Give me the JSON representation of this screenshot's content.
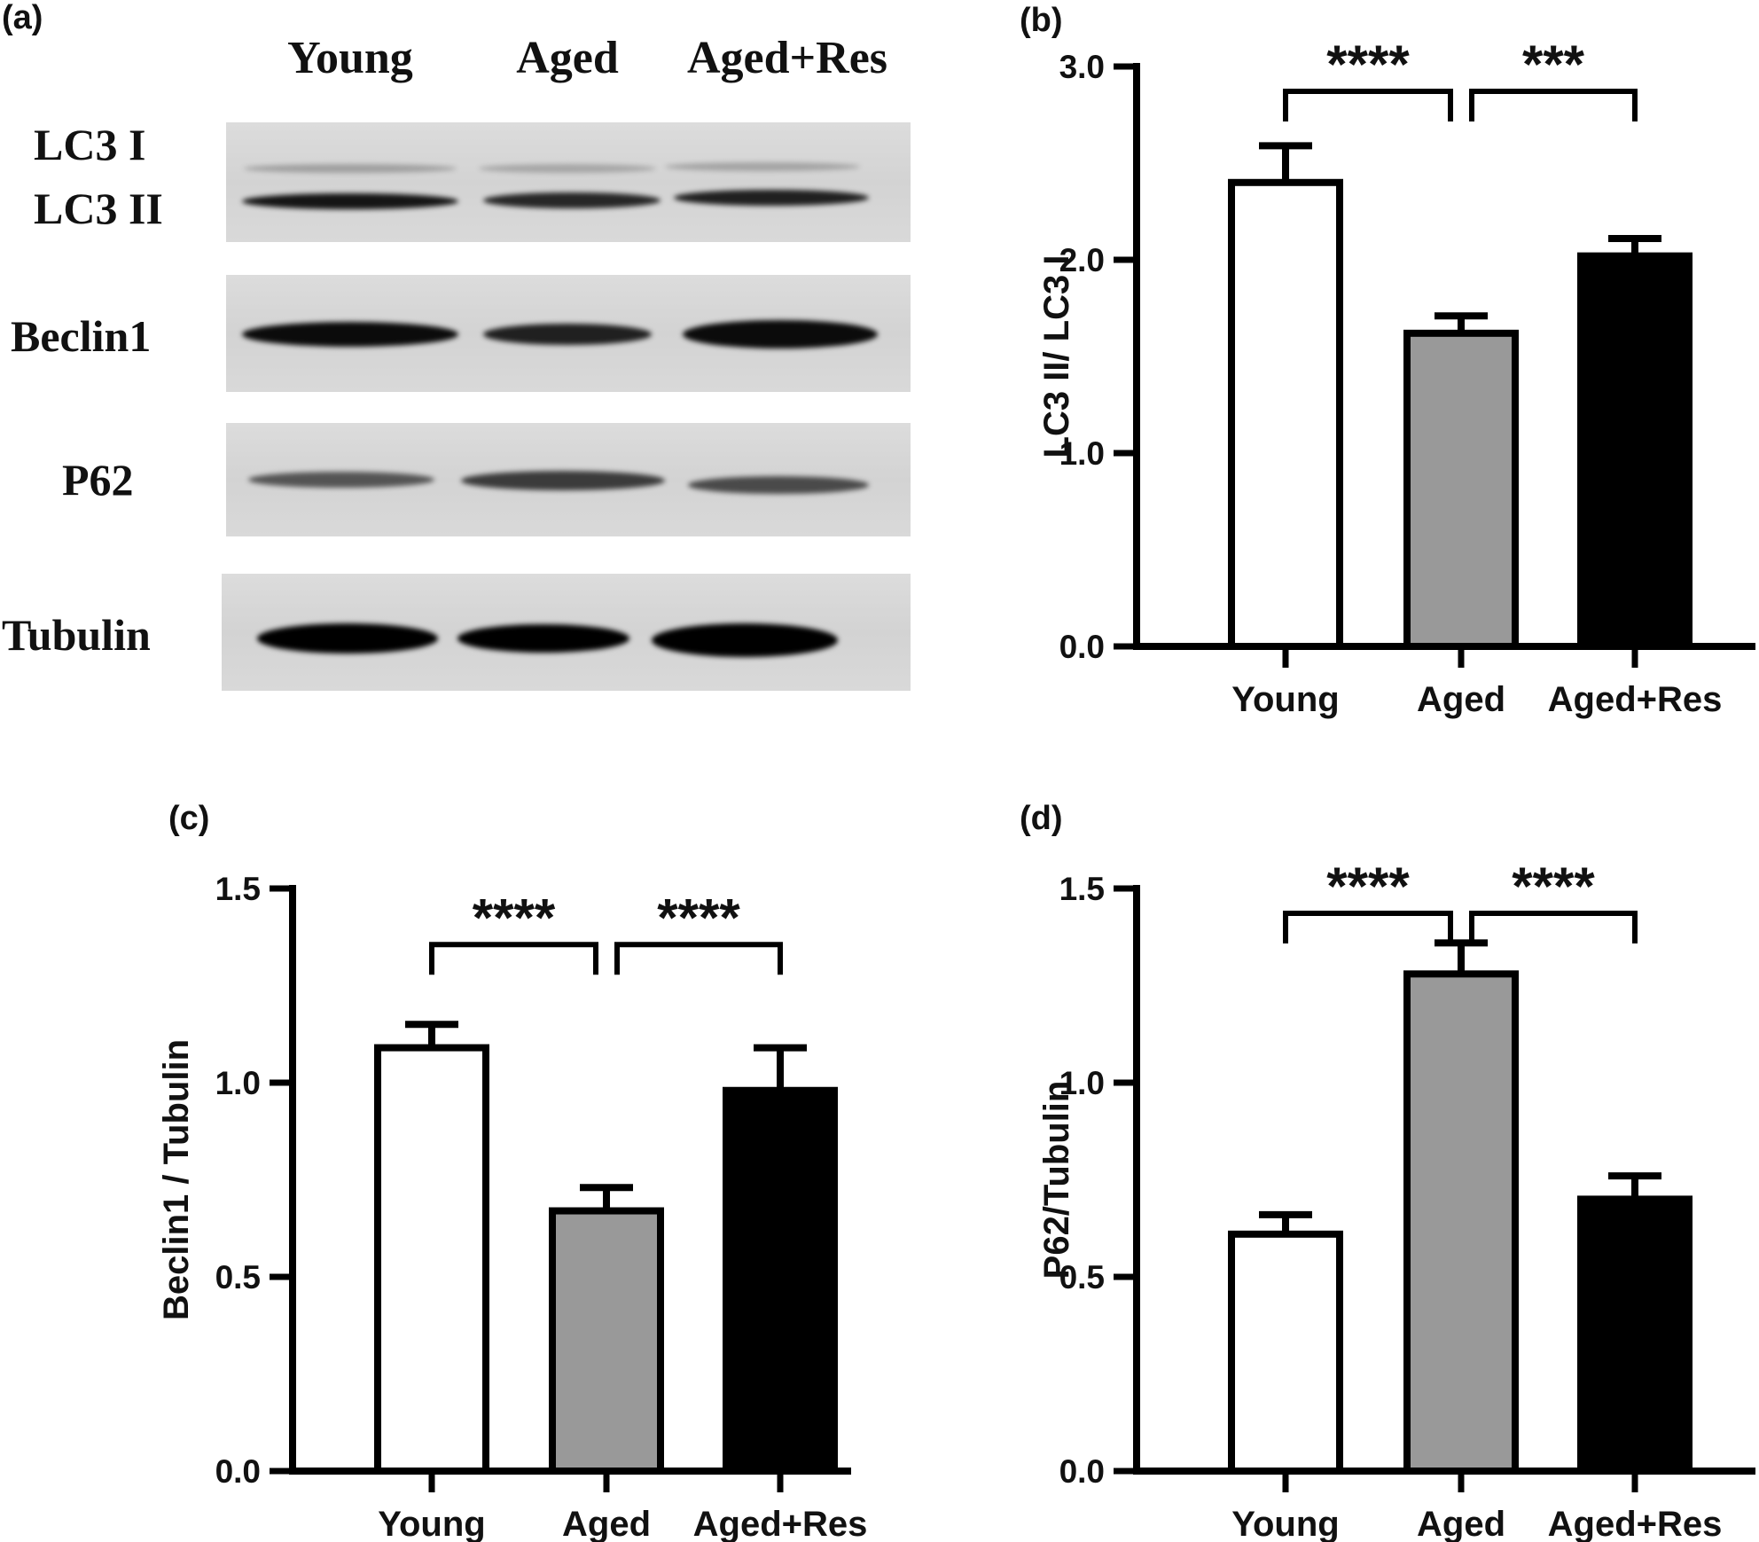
{
  "blot": {
    "panel_label": "(a)",
    "lane_headers": [
      "Young",
      "Aged",
      "Aged+Res"
    ],
    "rows": [
      {
        "labels": [
          "LC3 I",
          "LC3 II"
        ],
        "bands": [
          [
            0.25,
            0.22,
            0.23
          ],
          [
            0.9,
            0.82,
            0.85
          ]
        ]
      },
      {
        "labels": [
          "Beclin1"
        ],
        "bands": [
          [
            0.95,
            0.85,
            0.95
          ]
        ]
      },
      {
        "labels": [
          "P62"
        ],
        "bands": [
          [
            0.6,
            0.72,
            0.65
          ]
        ]
      },
      {
        "labels": [
          "Tubulin"
        ],
        "bands": [
          [
            1.0,
            1.0,
            1.0
          ]
        ]
      }
    ]
  },
  "colors": {
    "young": "#ffffff",
    "aged": "#999999",
    "aged_res": "#000000",
    "axis": "#000000"
  },
  "chart_data": [
    {
      "panel_label": "(b)",
      "type": "bar",
      "categories": [
        "Young",
        "Aged",
        "Aged+Res"
      ],
      "values": [
        2.4,
        1.62,
        2.02
      ],
      "errors": [
        0.19,
        0.09,
        0.09
      ],
      "ylabel": "LC3 II/ LC3 I",
      "ylim": [
        0,
        3.0
      ],
      "yticks": [
        0,
        1.0,
        2.0,
        3.0
      ],
      "ytick_labels": [
        "0.0",
        "1.0",
        "2.0",
        "3.0"
      ],
      "significance": [
        {
          "from": 0,
          "to": 1,
          "label": "****"
        },
        {
          "from": 1,
          "to": 2,
          "label": "***"
        }
      ]
    },
    {
      "panel_label": "(c)",
      "type": "bar",
      "categories": [
        "Young",
        "Aged",
        "Aged+Res"
      ],
      "values": [
        1.09,
        0.67,
        0.98
      ],
      "errors": [
        0.06,
        0.06,
        0.11
      ],
      "ylabel": "Beclin1 / Tubulin",
      "ylim": [
        0,
        1.5
      ],
      "yticks": [
        0,
        0.5,
        1.0,
        1.5
      ],
      "ytick_labels": [
        "0.0",
        "0.5",
        "1.0",
        "1.5"
      ],
      "significance": [
        {
          "from": 0,
          "to": 1,
          "label": "****"
        },
        {
          "from": 1,
          "to": 2,
          "label": "****"
        }
      ]
    },
    {
      "panel_label": "(d)",
      "type": "bar",
      "categories": [
        "Young",
        "Aged",
        "Aged+Res"
      ],
      "values": [
        0.61,
        1.28,
        0.7
      ],
      "errors": [
        0.05,
        0.08,
        0.06
      ],
      "ylabel": "P62/Tubulin",
      "ylim": [
        0,
        1.5
      ],
      "yticks": [
        0,
        0.5,
        1.0,
        1.5
      ],
      "ytick_labels": [
        "0.0",
        "0.5",
        "1.0",
        "1.5"
      ],
      "significance": [
        {
          "from": 0,
          "to": 1,
          "label": "****"
        },
        {
          "from": 1,
          "to": 2,
          "label": "****"
        }
      ]
    }
  ]
}
